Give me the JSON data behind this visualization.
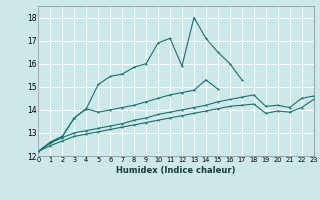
{
  "xlabel": "Humidex (Indice chaleur)",
  "x_ticks": [
    0,
    1,
    2,
    3,
    4,
    5,
    6,
    7,
    8,
    9,
    10,
    11,
    12,
    13,
    14,
    15,
    16,
    17,
    18,
    19,
    20,
    21,
    22,
    23
  ],
  "xlim": [
    0,
    23
  ],
  "ylim": [
    12,
    18.5
  ],
  "y_ticks": [
    12,
    13,
    14,
    15,
    16,
    17,
    18
  ],
  "background_color": "#cde8e8",
  "grid_color": "#b0d8d8",
  "line_color": "#1a7070",
  "series": [
    {
      "x": [
        0,
        1,
        2,
        3,
        4,
        5,
        6,
        7,
        8,
        9,
        10,
        11,
        12,
        13,
        14,
        15,
        16,
        17
      ],
      "y": [
        12.2,
        12.6,
        12.85,
        13.65,
        14.05,
        15.1,
        15.45,
        15.55,
        15.85,
        16.0,
        16.9,
        17.1,
        15.9,
        18.0,
        17.1,
        16.5,
        16.0,
        15.3
      ]
    },
    {
      "x": [
        0,
        1,
        2,
        3,
        4,
        5,
        6,
        7,
        8,
        9,
        10,
        11,
        12,
        13,
        14,
        15
      ],
      "y": [
        12.2,
        12.6,
        12.85,
        13.65,
        14.05,
        13.9,
        14.0,
        14.1,
        14.2,
        14.35,
        14.5,
        14.65,
        14.75,
        14.85,
        15.3,
        14.9
      ]
    },
    {
      "x": [
        0,
        1,
        2,
        3,
        4,
        5,
        6,
        7,
        8,
        9,
        10,
        11,
        12,
        13,
        14,
        15,
        16,
        17,
        18,
        19,
        20,
        21,
        22,
        23
      ],
      "y": [
        12.2,
        12.55,
        12.8,
        13.0,
        13.1,
        13.2,
        13.3,
        13.4,
        13.55,
        13.65,
        13.8,
        13.9,
        14.0,
        14.1,
        14.2,
        14.35,
        14.45,
        14.55,
        14.65,
        14.15,
        14.2,
        14.1,
        14.5,
        14.6
      ]
    },
    {
      "x": [
        0,
        1,
        2,
        3,
        4,
        5,
        6,
        7,
        8,
        9,
        10,
        11,
        12,
        13,
        14,
        15,
        16,
        17,
        18,
        19,
        20,
        21,
        22,
        23
      ],
      "y": [
        12.2,
        12.45,
        12.65,
        12.85,
        12.95,
        13.05,
        13.15,
        13.25,
        13.35,
        13.45,
        13.55,
        13.65,
        13.75,
        13.85,
        13.95,
        14.05,
        14.15,
        14.2,
        14.25,
        13.85,
        13.95,
        13.9,
        14.1,
        14.45
      ]
    }
  ]
}
